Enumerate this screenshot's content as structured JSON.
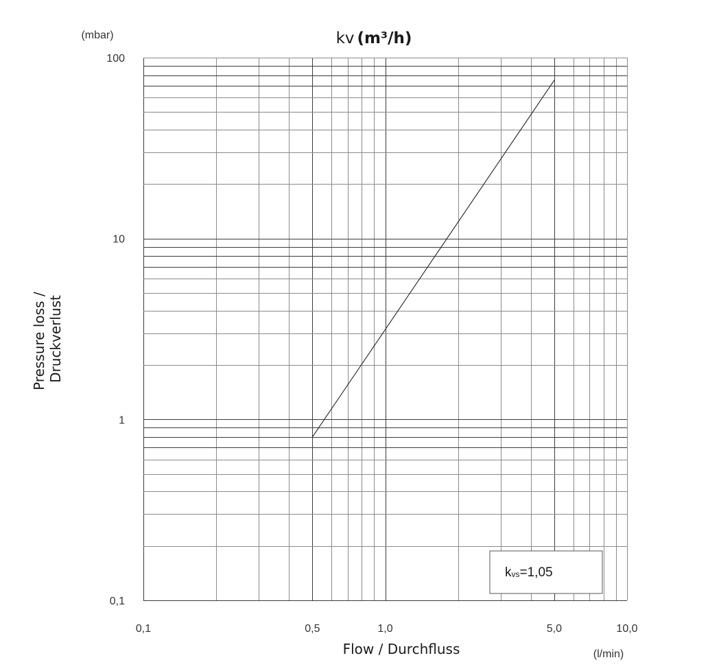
{
  "chart_data": {
    "type": "line",
    "title": "kv",
    "title_unit": "(m³/h)",
    "y_unit": "(mbar)",
    "x_unit": "(l/min)",
    "xlabel": "Flow / Durchfluss",
    "ylabel_lines": [
      "Pressure loss /",
      "Druckverlust"
    ],
    "x_scale": "log",
    "y_scale": "log",
    "xlim": [
      0.1,
      10
    ],
    "ylim": [
      0.1,
      100
    ],
    "grid": true,
    "x_ticks": [
      {
        "value": 0.1,
        "label": "0,1"
      },
      {
        "value": 0.5,
        "label": "0,5"
      },
      {
        "value": 1,
        "label": "1,0"
      },
      {
        "value": 5,
        "label": "5,0"
      },
      {
        "value": 10,
        "label": "10,0"
      }
    ],
    "y_ticks": [
      {
        "value": 0.1,
        "label": "0,1"
      },
      {
        "value": 1,
        "label": "1"
      },
      {
        "value": 10,
        "label": "10"
      },
      {
        "value": 100,
        "label": "100"
      }
    ],
    "series": [
      {
        "x": [
          0.5,
          5.0
        ],
        "y": [
          0.8,
          75
        ]
      }
    ],
    "annotations": [
      {
        "main": "k",
        "sub": "vs",
        "rest": "=1,05",
        "position": "bottom-right"
      }
    ],
    "colors": {
      "line": "#222222",
      "grid": "#8a8a8a",
      "grid_dark": "#3a3a3a"
    }
  }
}
